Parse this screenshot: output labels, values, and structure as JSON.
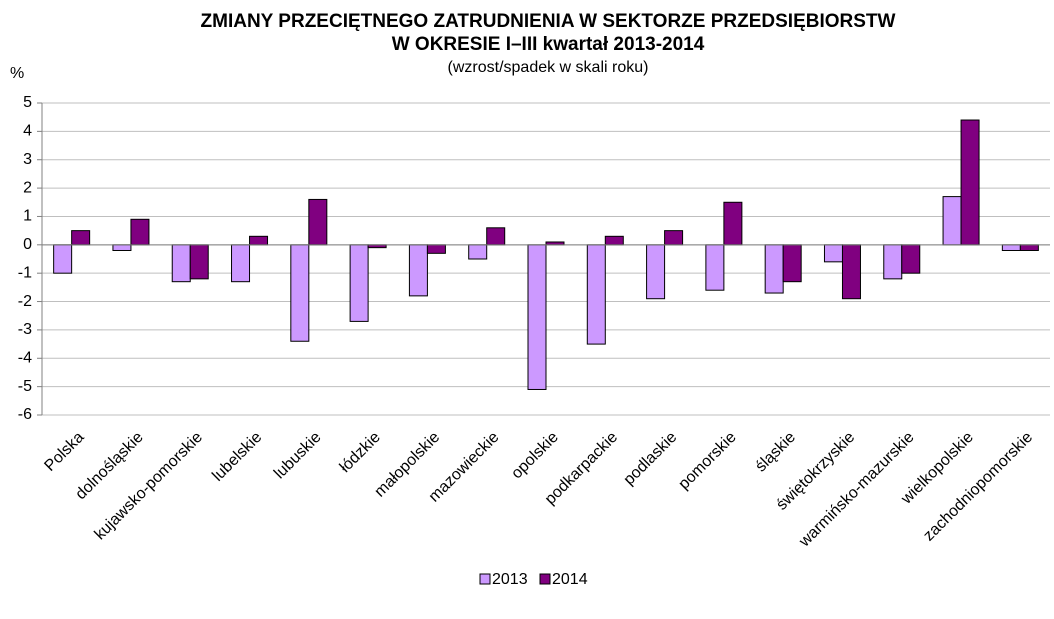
{
  "chart_data": {
    "type": "bar",
    "title": [
      "ZMIANY PRZECIĘTNEGO ZATRUDNIENIA W SEKTORZE PRZEDSIĘBIORSTW",
      "W OKRESIE I–III kwartał 2013-2014"
    ],
    "subtitle": "(wzrost/spadek w skali roku)",
    "y_label": "%",
    "categories": [
      "Polska",
      "dolnośląskie",
      "kujawsko-pomorskie",
      "lubelskie",
      "lubuskie",
      "łódzkie",
      "małopolskie",
      "mazowieckie",
      "opolskie",
      "podkarpackie",
      "podlaskie",
      "pomorskie",
      "śląskie",
      "świętokrzyskie",
      "warmińsko-mazurskie",
      "wielkopolskie",
      "zachodniopomorskie"
    ],
    "series": [
      {
        "name": "2013",
        "color": "#cc99ff",
        "values": [
          -1.0,
          -0.2,
          -1.3,
          -1.3,
          -3.4,
          -2.7,
          -1.8,
          -0.5,
          -5.1,
          -3.5,
          -1.9,
          -1.6,
          -1.7,
          -0.6,
          -1.2,
          1.7,
          -0.2
        ]
      },
      {
        "name": "2014",
        "color": "#800080",
        "values": [
          0.5,
          0.9,
          -1.2,
          0.3,
          1.6,
          -0.1,
          -0.3,
          0.6,
          0.1,
          0.3,
          0.5,
          1.5,
          -1.3,
          -1.9,
          -1.0,
          4.4,
          -0.2
        ]
      }
    ],
    "ylim": [
      -6,
      5
    ],
    "yticks": [
      -6,
      -5,
      -4,
      -3,
      -2,
      -1,
      0,
      1,
      2,
      3,
      4,
      5
    ],
    "grid": true
  }
}
